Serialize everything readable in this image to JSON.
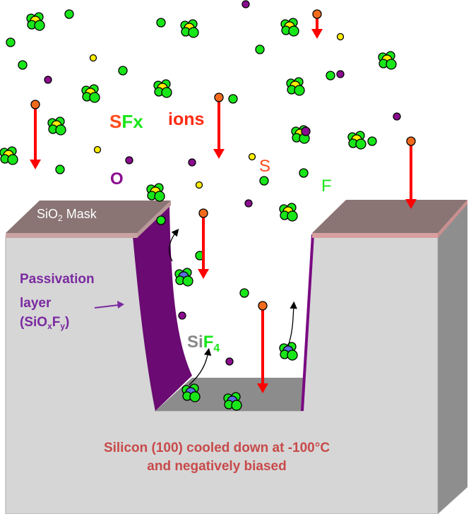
{
  "labels": {
    "sfx_s": "S",
    "sfx_fx": "Fx",
    "ions": "ions",
    "s": "S",
    "o": "O",
    "f": "F",
    "mask_si": "SiO",
    "mask_sub": "2",
    "mask_rest": " Mask",
    "passivation_line1": "Passivation",
    "passivation_line2": "layer",
    "passivation_line3_a": "(SiO",
    "passivation_line3_x": "x",
    "passivation_line3_f": "F",
    "passivation_line3_y": "y",
    "passivation_line3_close": ")",
    "sif4_si": "Si",
    "sif4_f": "F",
    "sif4_sub": "4",
    "substrate_line1": "Silicon (100) cooled down at -100°C",
    "substrate_line2": "and negatively biased"
  },
  "colors": {
    "ion_arrow": "#ff0000",
    "ion_head": "#f26b1d",
    "fluorine": "#19e619",
    "sulfur": "#ffee00",
    "oxygen": "#8b0d8f",
    "silicon": "#5b6ee0",
    "passivation": "#6a0a72",
    "mask": "#8a7474",
    "silicon_face": "#d6d6d6",
    "silicon_side": "#8e8e8e",
    "trench_floor": "#8c8c8c",
    "substrate_text": "#c84a4a",
    "passivation_text": "#7a2aa0"
  }
}
